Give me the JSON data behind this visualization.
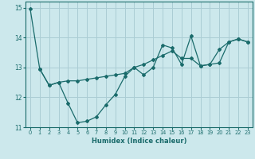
{
  "xlabel": "Humidex (Indice chaleur)",
  "xlim": [
    -0.5,
    23.5
  ],
  "ylim": [
    11,
    15.2
  ],
  "yticks": [
    11,
    12,
    13,
    14,
    15
  ],
  "xticks": [
    0,
    1,
    2,
    3,
    4,
    5,
    6,
    7,
    8,
    9,
    10,
    11,
    12,
    13,
    14,
    15,
    16,
    17,
    18,
    19,
    20,
    21,
    22,
    23
  ],
  "background_color": "#cce8ec",
  "grid_color": "#aacdd4",
  "line_color": "#1a6b6b",
  "line1_x": [
    0,
    1,
    2,
    3,
    4,
    5,
    6,
    7,
    8,
    9,
    10,
    11,
    12,
    13,
    14,
    15,
    16,
    17,
    18,
    19,
    20,
    21,
    22,
    23
  ],
  "line1_y": [
    14.95,
    12.95,
    12.4,
    12.5,
    11.8,
    11.15,
    11.2,
    11.35,
    11.75,
    12.1,
    12.7,
    13.0,
    12.75,
    13.0,
    13.75,
    13.65,
    13.1,
    14.05,
    13.05,
    13.1,
    13.15,
    13.85,
    13.95,
    13.85
  ],
  "line2_x": [
    1,
    2,
    3,
    4,
    5,
    6,
    7,
    8,
    9,
    10,
    11,
    12,
    13,
    14,
    15,
    16,
    17,
    18,
    19,
    20,
    21,
    22,
    23
  ],
  "line2_y": [
    12.95,
    12.4,
    12.5,
    12.55,
    12.55,
    12.6,
    12.65,
    12.7,
    12.75,
    12.8,
    13.0,
    13.1,
    13.25,
    13.4,
    13.55,
    13.3,
    13.3,
    13.05,
    13.1,
    13.6,
    13.85,
    13.95,
    13.85
  ]
}
